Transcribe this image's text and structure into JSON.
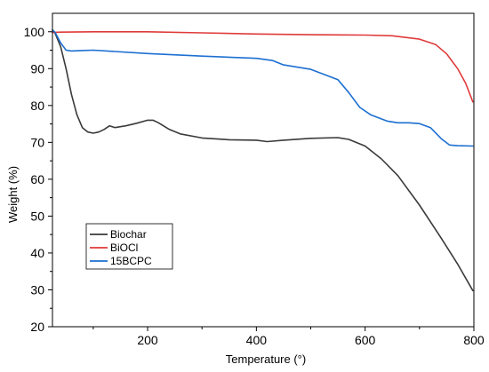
{
  "chart_data": {
    "type": "line",
    "xlabel": "Temperature (°)",
    "ylabel": "Weight (%)",
    "xlim": [
      25,
      800
    ],
    "ylim": [
      20,
      105
    ],
    "x_ticks": [
      200,
      400,
      600,
      800
    ],
    "x_tick_labels": [
      "200",
      "400",
      "600",
      "800"
    ],
    "y_ticks": [
      20,
      30,
      40,
      50,
      60,
      70,
      80,
      90,
      100
    ],
    "y_tick_labels": [
      "20",
      "30",
      "40",
      "50",
      "60",
      "70",
      "80",
      "90",
      "100"
    ],
    "grid": false,
    "legend_position": "lower-left",
    "series": [
      {
        "name": "Biochar",
        "color": "#3a3a3a",
        "x": [
          25,
          30,
          40,
          50,
          60,
          70,
          80,
          90,
          100,
          110,
          120,
          130,
          140,
          160,
          180,
          200,
          210,
          220,
          240,
          260,
          300,
          350,
          400,
          420,
          450,
          500,
          550,
          570,
          600,
          630,
          660,
          700,
          740,
          770,
          798
        ],
        "y": [
          100.5,
          99.5,
          96,
          90,
          83,
          77.5,
          74,
          72.8,
          72.5,
          72.8,
          73.5,
          74.5,
          74,
          74.5,
          75.2,
          76,
          76,
          75.3,
          73.5,
          72.3,
          71.2,
          70.7,
          70.6,
          70.2,
          70.6,
          71.1,
          71.3,
          70.8,
          69,
          65.5,
          61,
          53,
          44,
          37,
          29.8
        ]
      },
      {
        "name": "BiOCl",
        "color": "#e03a3a",
        "x": [
          25,
          40,
          100,
          200,
          300,
          400,
          500,
          600,
          650,
          700,
          730,
          750,
          770,
          785,
          798
        ],
        "y": [
          99.8,
          99.9,
          100,
          100,
          99.7,
          99.4,
          99.2,
          99.1,
          98.9,
          98,
          96.5,
          94,
          90,
          86,
          81
        ]
      },
      {
        "name": "15BCPC",
        "color": "#1c6fd1",
        "x": [
          25,
          30,
          40,
          50,
          60,
          80,
          100,
          200,
          300,
          400,
          430,
          450,
          500,
          550,
          570,
          590,
          610,
          640,
          660,
          680,
          700,
          720,
          740,
          755,
          770,
          798
        ],
        "y": [
          100.5,
          99.8,
          97,
          95,
          94.8,
          94.9,
          95,
          94.1,
          93.4,
          92.8,
          92.2,
          91,
          89.8,
          87,
          83.5,
          79.5,
          77.5,
          75.8,
          75.3,
          75.3,
          75.1,
          74,
          71,
          69.3,
          69.1,
          69
        ]
      }
    ]
  }
}
